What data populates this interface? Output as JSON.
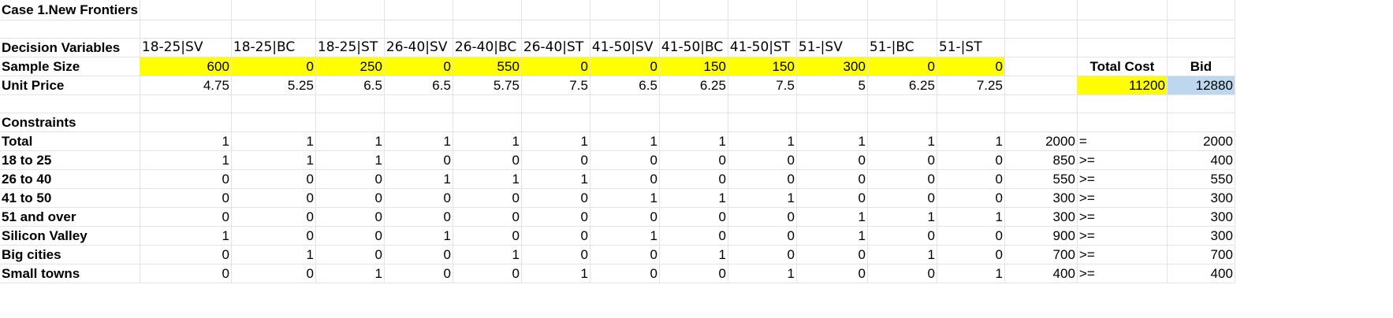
{
  "title": "Case 1.New Frontiers",
  "colors": {
    "highlight_yellow": "#ffff00",
    "highlight_blue": "#bdd7ee",
    "gridline": "#e3e3e3"
  },
  "decision_variables": {
    "label": "Decision Variables",
    "names": [
      "18-25|SV",
      "18-25|BC",
      "18-25|ST",
      "26-40|SV",
      "26-40|BC",
      "26-40|ST",
      "41-50|SV",
      "41-50|BC",
      "41-50|ST",
      "51-|SV",
      "51-|BC",
      "51-|ST"
    ]
  },
  "sample_size": {
    "label": "Sample Size",
    "values": [
      "600",
      "0",
      "250",
      "0",
      "550",
      "0",
      "0",
      "150",
      "150",
      "300",
      "0",
      "0"
    ]
  },
  "unit_price": {
    "label": "Unit Price",
    "values": [
      "4.75",
      "5.25",
      "6.5",
      "6.5",
      "5.75",
      "7.5",
      "6.5",
      "6.25",
      "7.5",
      "5",
      "6.25",
      "7.25"
    ]
  },
  "total_cost": {
    "label": "Total Cost",
    "value": "11200"
  },
  "bid": {
    "label": "Bid",
    "value": "12880"
  },
  "constraints": {
    "label": "Constraints",
    "rows": [
      {
        "label": "Total",
        "coeffs": [
          "1",
          "1",
          "1",
          "1",
          "1",
          "1",
          "1",
          "1",
          "1",
          "1",
          "1",
          "1"
        ],
        "lhs": "2000",
        "sign": "=",
        "rhs": "2000"
      },
      {
        "label": "18 to 25",
        "coeffs": [
          "1",
          "1",
          "1",
          "0",
          "0",
          "0",
          "0",
          "0",
          "0",
          "0",
          "0",
          "0"
        ],
        "lhs": "850",
        "sign": ">=",
        "rhs": "400"
      },
      {
        "label": "26 to 40",
        "coeffs": [
          "0",
          "0",
          "0",
          "1",
          "1",
          "1",
          "0",
          "0",
          "0",
          "0",
          "0",
          "0"
        ],
        "lhs": "550",
        "sign": ">=",
        "rhs": "550"
      },
      {
        "label": "41 to 50",
        "coeffs": [
          "0",
          "0",
          "0",
          "0",
          "0",
          "0",
          "1",
          "1",
          "1",
          "0",
          "0",
          "0"
        ],
        "lhs": "300",
        "sign": ">=",
        "rhs": "300"
      },
      {
        "label": "51 and over",
        "coeffs": [
          "0",
          "0",
          "0",
          "0",
          "0",
          "0",
          "0",
          "0",
          "0",
          "1",
          "1",
          "1"
        ],
        "lhs": "300",
        "sign": ">=",
        "rhs": "300"
      },
      {
        "label": "Silicon Valley",
        "coeffs": [
          "1",
          "0",
          "0",
          "1",
          "0",
          "0",
          "1",
          "0",
          "0",
          "1",
          "0",
          "0"
        ],
        "lhs": "900",
        "sign": ">=",
        "rhs": "300"
      },
      {
        "label": "Big cities",
        "coeffs": [
          "0",
          "1",
          "0",
          "0",
          "1",
          "0",
          "0",
          "1",
          "0",
          "0",
          "1",
          "0"
        ],
        "lhs": "700",
        "sign": ">=",
        "rhs": "700"
      },
      {
        "label": "Small towns",
        "coeffs": [
          "0",
          "0",
          "1",
          "0",
          "0",
          "1",
          "0",
          "0",
          "1",
          "0",
          "0",
          "1"
        ],
        "lhs": "400",
        "sign": ">=",
        "rhs": "400"
      }
    ]
  }
}
